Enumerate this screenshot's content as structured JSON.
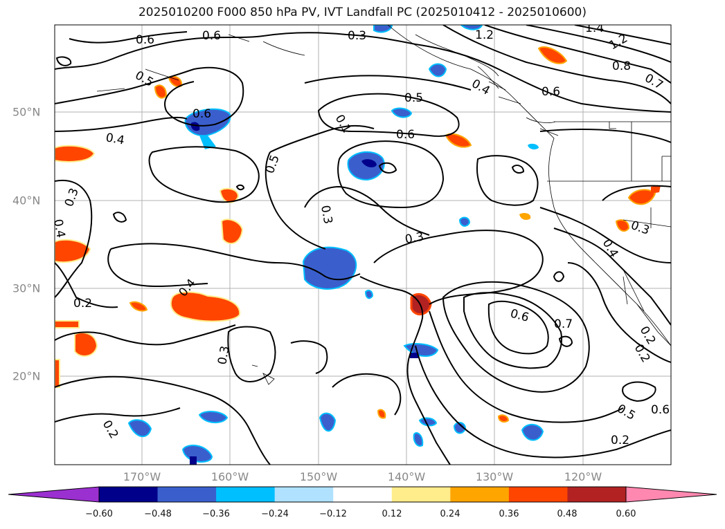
{
  "title": "2025010200 F000 850 hPa PV, IVT Landfall PC (2025010412 - 2025010600)",
  "map": {
    "region": "North Pacific",
    "lon_labels": [
      "170°W",
      "160°W",
      "150°W",
      "140°W",
      "130°W",
      "120°W"
    ],
    "lat_labels": [
      "50°N",
      "40°N",
      "30°N",
      "20°N"
    ],
    "contour_labels": [
      "0.6",
      "0.6",
      "0.3",
      "1.2",
      "1.4",
      "1.2",
      "0.8",
      "0.7",
      "0.5",
      "0.6",
      "0.4",
      "0.5",
      "0.6",
      "0.4",
      "0.1",
      "0.6",
      "0.5",
      "0.3",
      "0.3",
      "0.4",
      "0.3",
      "0.3",
      "0.4",
      "0.2",
      "0.4",
      "0.3",
      "0.6",
      "0.7",
      "0.2",
      "0.2",
      "0.5",
      "0.6",
      "0.2",
      "0.2"
    ]
  },
  "colorbar": {
    "ticks": [
      "−0.60",
      "−0.48",
      "−0.36",
      "−0.24",
      "−0.12",
      "0.12",
      "0.24",
      "0.36",
      "0.48",
      "0.60"
    ],
    "under_color": "#9b30d0",
    "over_color": "#ff88b0",
    "bin_colors": [
      "#00008b",
      "#3a5fcd",
      "#00bfff",
      "#b0e2ff",
      "#ffffff",
      "#ffec8b",
      "#ffa500",
      "#ff4500",
      "#b22222"
    ]
  }
}
